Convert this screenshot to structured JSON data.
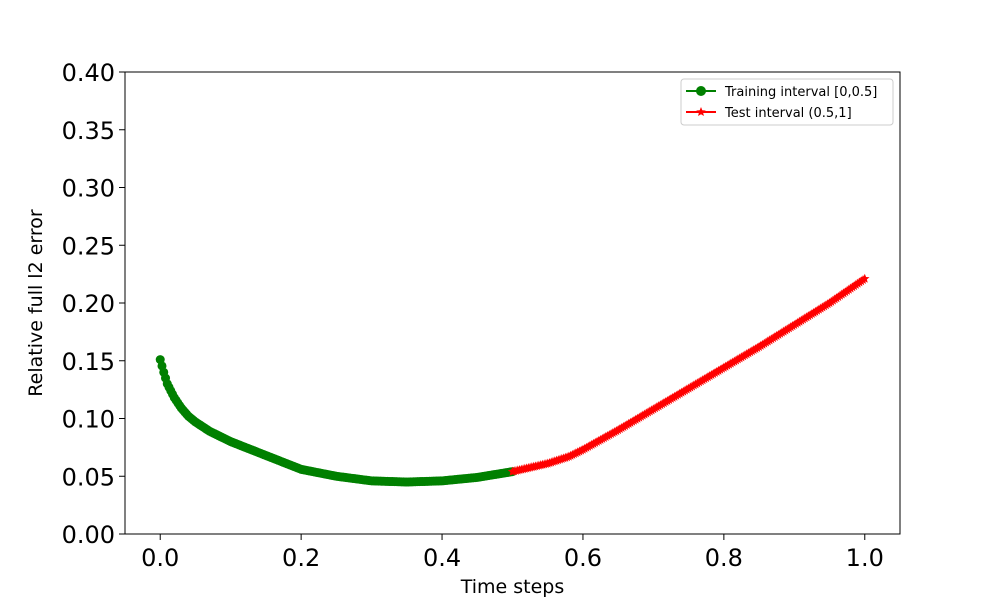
{
  "chart_data": {
    "type": "line",
    "title": "",
    "xlabel": "Time steps",
    "ylabel": "Relative full l2 error",
    "xlim": [
      -0.05,
      1.05
    ],
    "ylim": [
      0.0,
      0.4
    ],
    "xticks": [
      0.0,
      0.2,
      0.4,
      0.6,
      0.8,
      1.0
    ],
    "xtick_labels": [
      "0.0",
      "0.2",
      "0.4",
      "0.6",
      "0.8",
      "1.0"
    ],
    "yticks": [
      0.0,
      0.05,
      0.1,
      0.15,
      0.2,
      0.25,
      0.3,
      0.35,
      0.4
    ],
    "ytick_labels": [
      "0.00",
      "0.05",
      "0.10",
      "0.15",
      "0.20",
      "0.25",
      "0.30",
      "0.35",
      "0.40"
    ],
    "grid": false,
    "legend_position": "top-right",
    "series": [
      {
        "name": "Training interval [0,0.5]",
        "color": "#008000",
        "marker": "circle",
        "x": [
          0.0,
          0.005,
          0.01,
          0.02,
          0.03,
          0.04,
          0.05,
          0.07,
          0.1,
          0.15,
          0.2,
          0.25,
          0.3,
          0.35,
          0.4,
          0.45,
          0.5
        ],
        "y": [
          0.151,
          0.14,
          0.13,
          0.118,
          0.109,
          0.102,
          0.097,
          0.089,
          0.08,
          0.068,
          0.056,
          0.05,
          0.046,
          0.045,
          0.046,
          0.049,
          0.054
        ]
      },
      {
        "name": "Test interval (0.5,1]",
        "color": "#ff0000",
        "marker": "star",
        "x": [
          0.5,
          0.55,
          0.58,
          0.6,
          0.65,
          0.7,
          0.75,
          0.8,
          0.85,
          0.9,
          0.95,
          1.0
        ],
        "y": [
          0.054,
          0.061,
          0.067,
          0.073,
          0.09,
          0.108,
          0.126,
          0.144,
          0.162,
          0.181,
          0.2,
          0.221
        ]
      }
    ]
  }
}
